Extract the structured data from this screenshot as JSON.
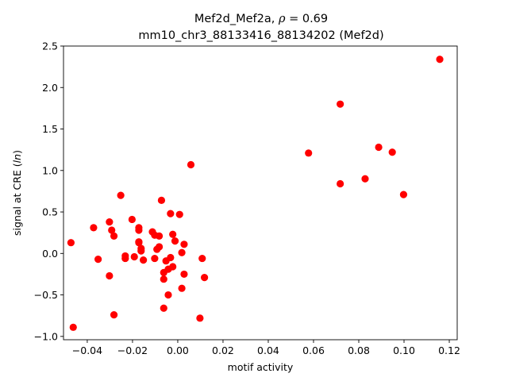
{
  "chart_data": {
    "type": "scatter",
    "title_line1_prefix": "Mef2d_Mef2a, ",
    "title_rho_symbol": "ρ",
    "title_rho_value": " = 0.69",
    "title_line2": "mm10_chr3_88133416_88134202 (Mef2d)",
    "xlabel": "motif activity",
    "ylabel_prefix": "signal at CRE (",
    "ylabel_italic": "ln",
    "ylabel_suffix": ")",
    "xlim": [
      -0.0505,
      0.1235
    ],
    "ylim": [
      -1.04,
      2.5
    ],
    "x_ticks": [
      -0.04,
      -0.02,
      0.0,
      0.02,
      0.04,
      0.06,
      0.08,
      0.1,
      0.12
    ],
    "x_tick_labels": [
      "−0.04",
      "−0.02",
      "0.00",
      "0.02",
      "0.04",
      "0.06",
      "0.08",
      "0.10",
      "0.12"
    ],
    "y_ticks": [
      -1.0,
      -0.5,
      0.0,
      0.5,
      1.0,
      1.5,
      2.0,
      2.5
    ],
    "y_tick_labels": [
      "−1.0",
      "−0.5",
      "0.0",
      "0.5",
      "1.0",
      "1.5",
      "2.0",
      "2.5"
    ],
    "grid": false,
    "marker_color": "#ff0000",
    "points": [
      {
        "x": -0.0472,
        "y": 0.13
      },
      {
        "x": -0.0462,
        "y": -0.89
      },
      {
        "x": -0.0372,
        "y": 0.31
      },
      {
        "x": -0.0352,
        "y": -0.07
      },
      {
        "x": -0.0302,
        "y": 0.38
      },
      {
        "x": -0.0302,
        "y": -0.27
      },
      {
        "x": -0.0292,
        "y": 0.28
      },
      {
        "x": -0.0282,
        "y": 0.21
      },
      {
        "x": -0.0282,
        "y": -0.74
      },
      {
        "x": -0.0252,
        "y": 0.7
      },
      {
        "x": -0.0232,
        "y": -0.03
      },
      {
        "x": -0.0232,
        "y": -0.06
      },
      {
        "x": -0.0202,
        "y": 0.41
      },
      {
        "x": -0.0192,
        "y": -0.04
      },
      {
        "x": -0.0172,
        "y": 0.28
      },
      {
        "x": -0.0172,
        "y": 0.31
      },
      {
        "x": -0.0172,
        "y": 0.14
      },
      {
        "x": -0.0172,
        "y": 0.13
      },
      {
        "x": -0.0162,
        "y": 0.03
      },
      {
        "x": -0.0162,
        "y": 0.06
      },
      {
        "x": -0.0152,
        "y": -0.08
      },
      {
        "x": -0.0112,
        "y": 0.26
      },
      {
        "x": -0.0102,
        "y": 0.22
      },
      {
        "x": -0.0102,
        "y": -0.06
      },
      {
        "x": -0.0092,
        "y": 0.05
      },
      {
        "x": -0.0082,
        "y": 0.21
      },
      {
        "x": -0.0082,
        "y": 0.08
      },
      {
        "x": -0.0072,
        "y": 0.64
      },
      {
        "x": -0.0062,
        "y": -0.23
      },
      {
        "x": -0.0062,
        "y": -0.31
      },
      {
        "x": -0.0062,
        "y": -0.66
      },
      {
        "x": -0.0052,
        "y": -0.09
      },
      {
        "x": -0.0042,
        "y": -0.19
      },
      {
        "x": -0.0042,
        "y": -0.5
      },
      {
        "x": -0.0032,
        "y": -0.05
      },
      {
        "x": -0.0032,
        "y": 0.48
      },
      {
        "x": -0.0022,
        "y": -0.16
      },
      {
        "x": -0.0022,
        "y": 0.23
      },
      {
        "x": -0.0012,
        "y": 0.15
      },
      {
        "x": 0.0008,
        "y": 0.47
      },
      {
        "x": 0.0018,
        "y": 0.01
      },
      {
        "x": 0.0018,
        "y": -0.42
      },
      {
        "x": 0.0028,
        "y": 0.11
      },
      {
        "x": 0.0028,
        "y": -0.25
      },
      {
        "x": 0.0058,
        "y": 1.07
      },
      {
        "x": 0.0098,
        "y": -0.78
      },
      {
        "x": 0.0108,
        "y": -0.06
      },
      {
        "x": 0.0118,
        "y": -0.29
      },
      {
        "x": 0.0578,
        "y": 1.21
      },
      {
        "x": 0.0718,
        "y": 1.8
      },
      {
        "x": 0.0718,
        "y": 0.84
      },
      {
        "x": 0.0828,
        "y": 0.9
      },
      {
        "x": 0.0888,
        "y": 1.28
      },
      {
        "x": 0.0948,
        "y": 1.22
      },
      {
        "x": 0.0998,
        "y": 0.71
      },
      {
        "x": 0.1158,
        "y": 2.34
      }
    ]
  }
}
